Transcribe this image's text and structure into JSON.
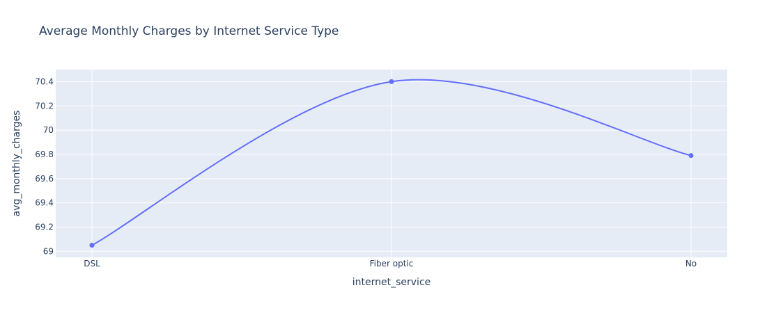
{
  "chart_data": {
    "type": "line",
    "title": "Average Monthly Charges by Internet Service Type",
    "xlabel": "internet_service",
    "ylabel": "avg_monthly_charges",
    "categories": [
      "DSL",
      "Fiber optic",
      "No"
    ],
    "series": [
      {
        "values": [
          69.05,
          70.4,
          69.79
        ],
        "color": "#636efa"
      }
    ],
    "ylim": [
      68.95,
      70.5
    ],
    "yticks": [
      69,
      69.2,
      69.4,
      69.6,
      69.8,
      70,
      70.2,
      70.4
    ],
    "ytick_labels": [
      "69",
      "69.2",
      "69.4",
      "69.6",
      "69.8",
      "70",
      "70.2",
      "70.4"
    ],
    "line_shape": "spline",
    "markers": true,
    "grid": true,
    "plot_background": "#e5ecf6",
    "grid_color": "#ffffff"
  }
}
